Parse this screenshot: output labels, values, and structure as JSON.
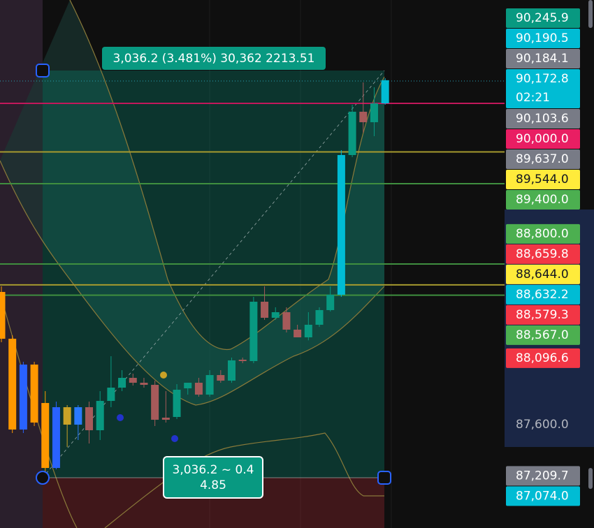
{
  "chart_data": {
    "type": "candlestick",
    "ylim": [
      86828,
      90772
    ],
    "yticks": [
      {
        "value": 87600,
        "label": "87,600.0"
      }
    ],
    "grid": false,
    "candles": [
      {
        "open": 88591.3,
        "high": 88633,
        "low": 88215.6,
        "close": 88241.7,
        "color": "#ff9800"
      },
      {
        "open": 88241.7,
        "high": 88267.8,
        "low": 87537.4,
        "close": 87563.5,
        "color": "#ff9800"
      },
      {
        "open": 87563.5,
        "high": 88069.6,
        "low": 87537.4,
        "close": 88048.7,
        "color": "#2962ff"
      },
      {
        "open": 88048.7,
        "high": 88069.6,
        "low": 87589.6,
        "close": 87615.6,
        "color": "#ff9800"
      },
      {
        "open": 87761.7,
        "high": 87850.4,
        "low": 87250.4,
        "close": 87276.5,
        "color": "#ff9800"
      },
      {
        "open": 87276.5,
        "high": 87772.2,
        "low": 87266.1,
        "close": 87730.4,
        "color": "#2962ff"
      },
      {
        "open": 87600,
        "high": 87746.1,
        "low": 87433,
        "close": 87730.4,
        "color": "#c9a227"
      },
      {
        "open": 87600,
        "high": 87746.1,
        "low": 87485.2,
        "close": 87730.4,
        "color": "#2979ff"
      },
      {
        "open": 87730.4,
        "high": 87772.2,
        "low": 87459.1,
        "close": 87558.3,
        "color": "#a65a5a"
      },
      {
        "open": 87558.3,
        "high": 87850.4,
        "low": 87485.2,
        "close": 87777.4,
        "color": "#089981"
      },
      {
        "open": 87777.4,
        "high": 88111.3,
        "low": 87730.4,
        "close": 87876.5,
        "color": "#089981"
      },
      {
        "open": 87876.5,
        "high": 88007,
        "low": 87850.4,
        "close": 87949.6,
        "color": "#089981"
      },
      {
        "open": 87949.6,
        "high": 87980.9,
        "low": 87892.2,
        "close": 87913,
        "color": "#a65a5a"
      },
      {
        "open": 87913,
        "high": 87949.6,
        "low": 87876.5,
        "close": 87897.4,
        "color": "#a65a5a"
      },
      {
        "open": 87897.4,
        "high": 87928.7,
        "low": 87589.6,
        "close": 87636.5,
        "color": "#a65a5a"
      },
      {
        "open": 87652.2,
        "high": 87850.4,
        "low": 87615.6,
        "close": 87636.5,
        "color": "#a65a5a"
      },
      {
        "open": 87657.4,
        "high": 87902.6,
        "low": 87641.7,
        "close": 87860.9,
        "color": "#089981"
      },
      {
        "open": 87871.3,
        "high": 87913,
        "low": 87824.3,
        "close": 87913,
        "color": "#089981"
      },
      {
        "open": 87913,
        "high": 87949.6,
        "low": 87808.7,
        "close": 87824.3,
        "color": "#a65a5a"
      },
      {
        "open": 87824.3,
        "high": 88007,
        "low": 87808.7,
        "close": 87970.4,
        "color": "#089981"
      },
      {
        "open": 87970.4,
        "high": 88007,
        "low": 87913,
        "close": 87928.7,
        "color": "#a65a5a"
      },
      {
        "open": 87928.7,
        "high": 88100.9,
        "low": 87913,
        "close": 88080,
        "color": "#089981"
      },
      {
        "open": 88085.2,
        "high": 88100.9,
        "low": 88059.1,
        "close": 88074.8,
        "color": "#a65a5a"
      },
      {
        "open": 88074.8,
        "high": 88554.8,
        "low": 88059.1,
        "close": 88518.3,
        "color": "#089981"
      },
      {
        "open": 88518.3,
        "high": 88633,
        "low": 88382.6,
        "close": 88398.3,
        "color": "#a65a5a"
      },
      {
        "open": 88398.3,
        "high": 88476.5,
        "low": 88382.6,
        "close": 88440,
        "color": "#089981"
      },
      {
        "open": 88440,
        "high": 88476.5,
        "low": 88288.7,
        "close": 88309.6,
        "color": "#a65a5a"
      },
      {
        "open": 88309.6,
        "high": 88346.1,
        "low": 88252.2,
        "close": 88252.2,
        "color": "#a65a5a"
      },
      {
        "open": 88252.2,
        "high": 88440,
        "low": 88230,
        "close": 88346.1,
        "color": "#089981"
      },
      {
        "open": 88346.1,
        "high": 88476.5,
        "low": 88330,
        "close": 88455.6,
        "color": "#089981"
      },
      {
        "open": 88455.6,
        "high": 88633,
        "low": 88445.2,
        "close": 88570.4,
        "color": "#089981"
      },
      {
        "open": 88570.4,
        "high": 89650.4,
        "low": 88554.8,
        "close": 89613.9,
        "color": "#00bcd4"
      },
      {
        "open": 89613.9,
        "high": 89989.6,
        "low": 89598.3,
        "close": 89937.4,
        "color": "#089981"
      },
      {
        "open": 89937.4,
        "high": 90156.5,
        "low": 89780.9,
        "close": 89859.1,
        "color": "#a65a5a"
      },
      {
        "open": 89859.1,
        "high": 90120,
        "low": 89754.8,
        "close": 90000,
        "color": "#089981"
      },
      {
        "open": 90000,
        "high": 90187.8,
        "low": 89990,
        "close": 90172.8,
        "color": "#00bcd4"
      }
    ],
    "lines": [
      {
        "value": 90000,
        "color": "#c2185b"
      },
      {
        "value": 89637,
        "color": "#a69a2e"
      },
      {
        "value": 89400,
        "color": "#3f8f3f"
      },
      {
        "value": 88800,
        "color": "#3f8f3f"
      },
      {
        "value": 88644,
        "color": "#a69a2e"
      },
      {
        "value": 88567,
        "color": "#3f8f3f"
      }
    ],
    "tags": [
      {
        "value": 90245.9,
        "label": "90,245.9",
        "color": "#089981",
        "text_color": "#ffffff"
      },
      {
        "value": 90190.5,
        "label": "90,190.5",
        "color": "#00bcd4",
        "text_color": "#ffffff"
      },
      {
        "value": 90184.1,
        "label": "90,184.1",
        "color": "#787b86",
        "text_color": "#ffffff"
      },
      {
        "value": 90172.8,
        "label": "90,172.8",
        "countdown": "02:21",
        "color": "#00bcd4",
        "text_color": "#ffffff"
      },
      {
        "value": 90103.6,
        "label": "90,103.6",
        "color": "#787b86",
        "text_color": "#ffffff"
      },
      {
        "value": 90000,
        "label": "90,000.0",
        "color": "#e91e63",
        "text_color": "#ffffff"
      },
      {
        "value": 89637,
        "label": "89,637.0",
        "color": "#787b86",
        "text_color": "#ffffff"
      },
      {
        "value": 89544,
        "label": "89,544.0",
        "color": "#ffeb3b",
        "text_color": "#131722"
      },
      {
        "value": 89400,
        "label": "89,400.0",
        "color": "#4caf50",
        "text_color": "#ffffff"
      },
      {
        "value": 88800,
        "label": "88,800.0",
        "color": "#4caf50",
        "text_color": "#ffffff"
      },
      {
        "value": 88659.8,
        "label": "88,659.8",
        "color": "#f23645",
        "text_color": "#ffffff"
      },
      {
        "value": 88644,
        "label": "88,644.0",
        "color": "#ffeb3b",
        "text_color": "#131722"
      },
      {
        "value": 88632.2,
        "label": "88,632.2",
        "color": "#00bcd4",
        "text_color": "#ffffff"
      },
      {
        "value": 88579.3,
        "label": "88,579.3",
        "color": "#f23645",
        "text_color": "#ffffff"
      },
      {
        "value": 88567,
        "label": "88,567.0",
        "color": "#4caf50",
        "text_color": "#ffffff"
      },
      {
        "value": 88096.6,
        "label": "88,096.6",
        "color": "#f23645",
        "text_color": "#ffffff"
      },
      {
        "value": 87209.7,
        "label": "87,209.7",
        "color": "#787b86",
        "text_color": "#ffffff"
      },
      {
        "value": 87074,
        "label": "87,074.0",
        "color": "#00bcd4",
        "text_color": "#ffffff"
      }
    ],
    "measure": {
      "label": "3,036.2 (3.481%) 30,362 2213.51",
      "bottom_label": [
        "3,036.2 ~ 0.4",
        "4.85"
      ]
    }
  }
}
